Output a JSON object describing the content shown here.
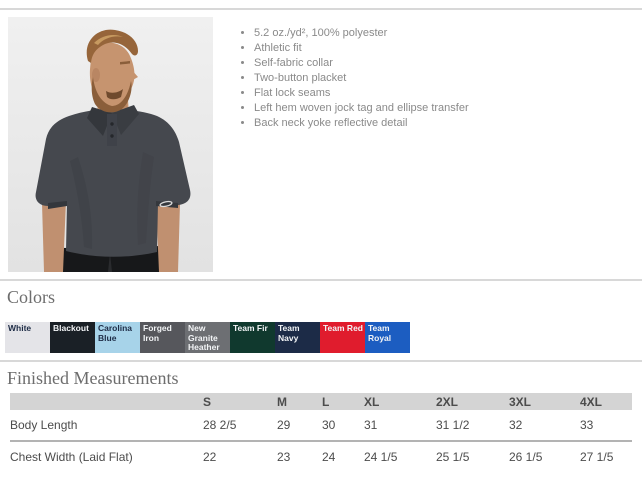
{
  "features": [
    "5.2 oz./yd², 100% polyester",
    "Athletic fit",
    "Self-fabric collar",
    "Two-button placket",
    "Flat lock seams",
    "Left hem woven jock tag and ellipse transfer",
    "Back neck yoke reflective detail"
  ],
  "colors_section": {
    "title": "Colors",
    "swatches": [
      {
        "name": "White",
        "bg": "#e4e4e8",
        "fg": "#1d2b45"
      },
      {
        "name": "Blackout",
        "bg": "#1a2026",
        "fg": "#f2f4f6"
      },
      {
        "name": "Carolina Blue",
        "bg": "#a7d3e9",
        "fg": "#1d2b45"
      },
      {
        "name": "Forged Iron",
        "bg": "#56575c",
        "fg": "#f2f4f6"
      },
      {
        "name": "New Granite Heather",
        "bg": "#6d6f73",
        "fg": "#f2f4f6"
      },
      {
        "name": "Team Fir",
        "bg": "#10392e",
        "fg": "#f2f4f6"
      },
      {
        "name": "Team Navy",
        "bg": "#1c2b47",
        "fg": "#f2f4f6"
      },
      {
        "name": "Team Red",
        "bg": "#e01c2d",
        "fg": "#f2f4f6"
      },
      {
        "name": "Team Royal",
        "bg": "#1c5dc1",
        "fg": "#f2f4f6"
      }
    ]
  },
  "measurements": {
    "title": "Finished Measurements",
    "size_columns": [
      "S",
      "M",
      "L",
      "XL",
      "2XL",
      "3XL",
      "4XL"
    ],
    "rows": [
      {
        "label": "Body Length",
        "values": [
          "28 2/5",
          "29",
          "30",
          "31",
          "31 1/2",
          "32",
          "33"
        ]
      },
      {
        "label": "Chest Width (Laid Flat)",
        "values": [
          "22",
          "23",
          "24",
          "24 1/5",
          "25 1/5",
          "26 1/5",
          "27 1/5"
        ]
      }
    ]
  }
}
